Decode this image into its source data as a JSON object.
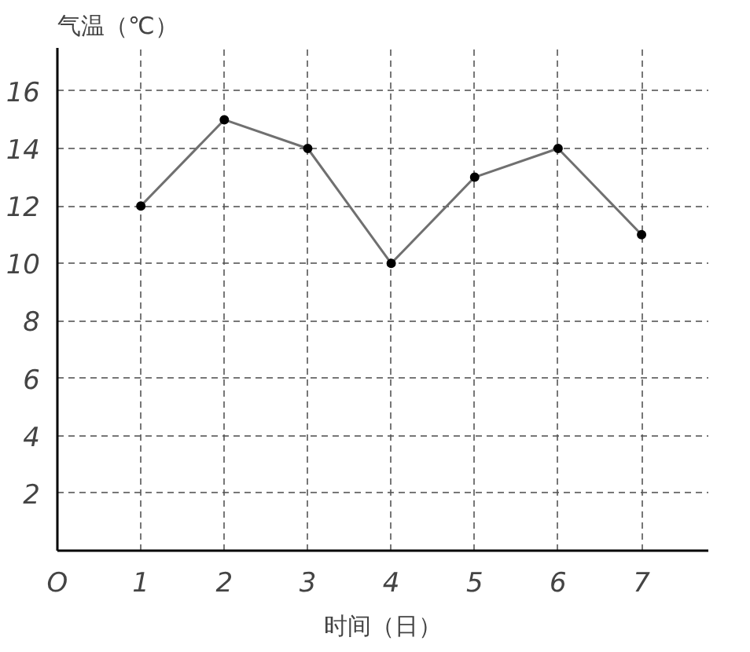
{
  "chart_data": {
    "type": "line",
    "xlabel": "时间（日）",
    "ylabel": "气温（℃）",
    "x": [
      1,
      2,
      3,
      4,
      5,
      6,
      7
    ],
    "series": [
      {
        "color": "#707070",
        "values": [
          12,
          15,
          14,
          10,
          13,
          14,
          11
        ]
      }
    ],
    "xlim": [
      0,
      7.8
    ],
    "ylim": [
      0,
      17.5
    ],
    "xticks": [
      {
        "value": 0,
        "label": "O"
      },
      1,
      2,
      3,
      4,
      5,
      6,
      7
    ],
    "yticks": [
      2,
      4,
      6,
      8,
      10,
      12,
      14,
      16
    ],
    "grid": true,
    "marker": "circle",
    "line_style": "solid"
  }
}
